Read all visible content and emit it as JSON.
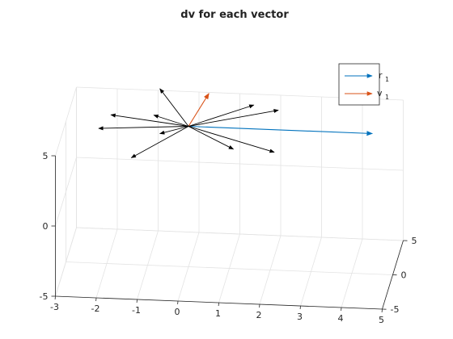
{
  "chart_data": {
    "type": "quiver3",
    "title": "dv for each vector",
    "xlabel": "",
    "ylabel": "",
    "zlabel": "",
    "xlim": [
      -3,
      5
    ],
    "ylim": [
      -5,
      5
    ],
    "zlim": [
      -5,
      5
    ],
    "xticks": [
      "-3",
      "-2",
      "-1",
      "0",
      "1",
      "2",
      "3",
      "4",
      "5"
    ],
    "yticks": [
      "-5",
      "0",
      "5"
    ],
    "zticks": [
      "-5",
      "0",
      "5"
    ],
    "grid": true,
    "legend_position": "top-right",
    "origin": [
      0,
      0,
      5
    ],
    "series": [
      {
        "name": "r",
        "name_subscript": "1",
        "color": "#0072bd",
        "vectors": [
          [
            4.5,
            0,
            0
          ]
        ]
      },
      {
        "name": "v",
        "name_subscript": "1",
        "color": "#d95319",
        "vectors": [
          [
            0.5,
            0,
            2.4
          ]
        ]
      },
      {
        "name": "",
        "color": "#000000",
        "vectors": [
          [
            -0.7,
            0,
            2.6
          ],
          [
            1.6,
            0,
            1.7
          ],
          [
            2.2,
            0,
            1.4
          ],
          [
            -1.9,
            0,
            0.6
          ],
          [
            -0.85,
            0,
            0.7
          ],
          [
            -2.2,
            0,
            -0.4
          ],
          [
            -0.7,
            0,
            -0.6
          ],
          [
            -1.4,
            0,
            -2.4
          ],
          [
            1.1,
            0,
            -1.5
          ],
          [
            2.1,
            0,
            -1.6
          ]
        ]
      }
    ]
  }
}
